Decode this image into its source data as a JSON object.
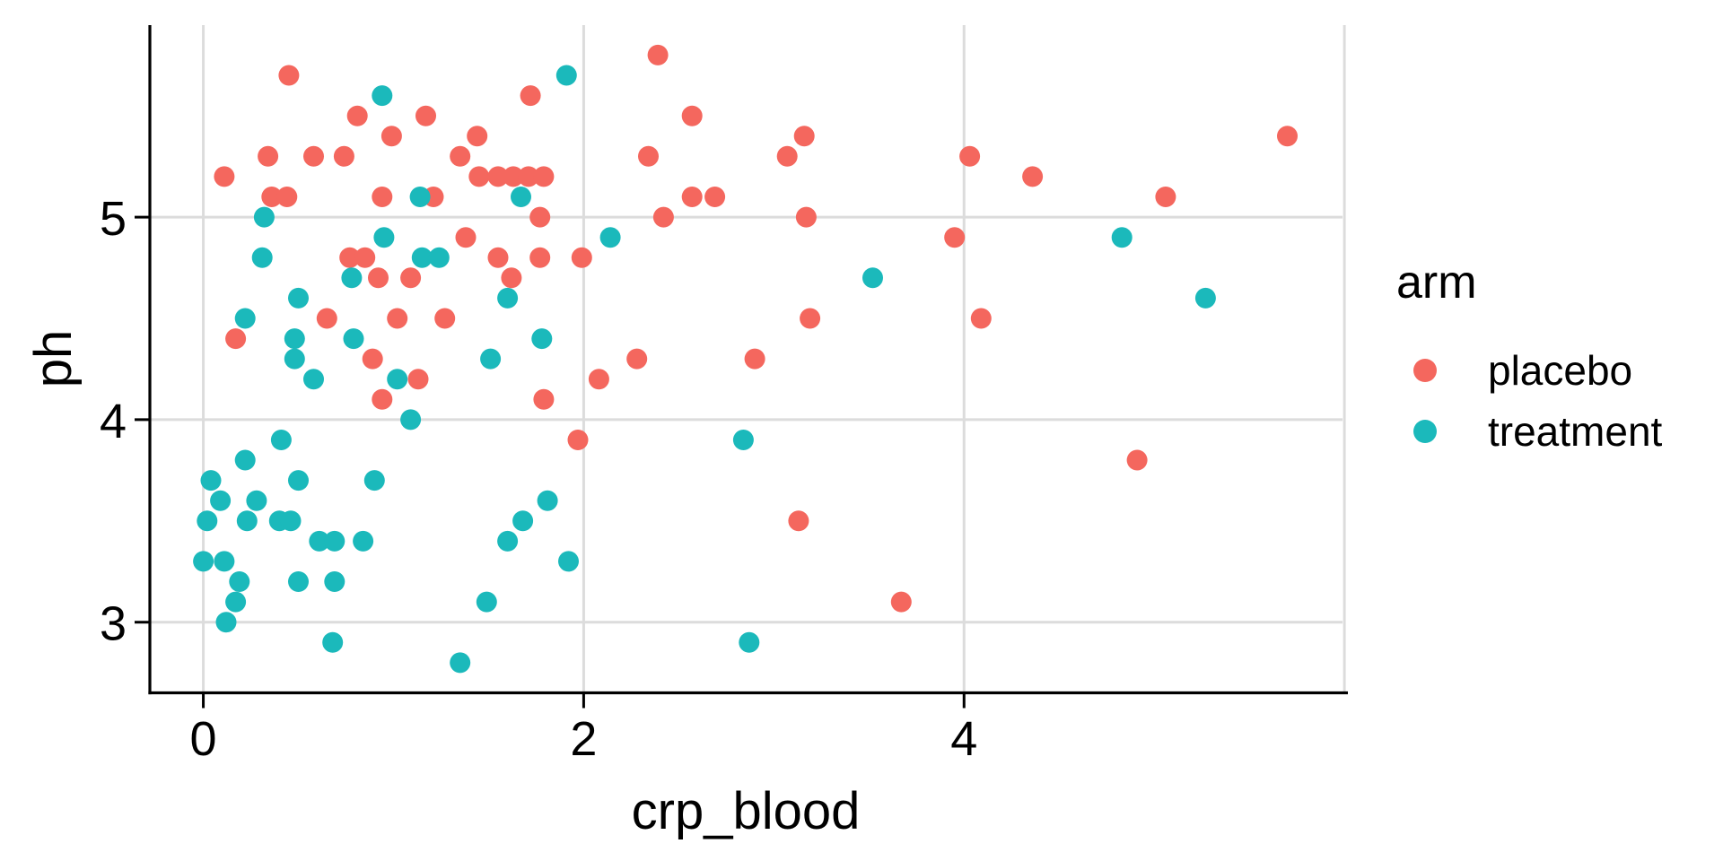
{
  "figure": {
    "background": "#ffffff",
    "text_color": "#000000",
    "gridline_color": "#dcdcdc",
    "axis_line_color": "#000000"
  },
  "chart_data": {
    "type": "scatter",
    "title": "",
    "xlabel": "crp_blood",
    "ylabel": "ph",
    "x_ticks": [
      0,
      2,
      4
    ],
    "y_ticks": [
      5,
      4,
      3
    ],
    "x_range": [
      -0.281,
      5.99
    ],
    "y_range": [
      2.651,
      5.948
    ],
    "grid": "major-only",
    "legend": {
      "title": "arm",
      "position": "right"
    },
    "series": [
      {
        "name": "placebo",
        "color": "#f4675e",
        "points": [
          [
            0.45,
            5.7
          ],
          [
            0.81,
            5.5
          ],
          [
            1.17,
            5.5
          ],
          [
            0.99,
            5.4
          ],
          [
            1.44,
            5.4
          ],
          [
            0.34,
            5.3
          ],
          [
            0.58,
            5.3
          ],
          [
            0.74,
            5.3
          ],
          [
            1.35,
            5.3
          ],
          [
            0.11,
            5.2
          ],
          [
            1.45,
            5.2
          ],
          [
            1.55,
            5.2
          ],
          [
            1.63,
            5.2
          ],
          [
            1.71,
            5.2
          ],
          [
            1.79,
            5.2
          ],
          [
            0.36,
            5.1
          ],
          [
            0.44,
            5.1
          ],
          [
            0.94,
            5.1
          ],
          [
            1.21,
            5.1
          ],
          [
            2.57,
            5.1
          ],
          [
            2.69,
            5.1
          ],
          [
            1.77,
            5.0
          ],
          [
            2.42,
            5.0
          ],
          [
            3.17,
            5.0
          ],
          [
            1.38,
            4.9
          ],
          [
            3.95,
            4.9
          ],
          [
            0.77,
            4.8
          ],
          [
            0.85,
            4.8
          ],
          [
            1.55,
            4.8
          ],
          [
            1.77,
            4.8
          ],
          [
            1.99,
            4.8
          ],
          [
            0.92,
            4.7
          ],
          [
            1.09,
            4.7
          ],
          [
            1.62,
            4.7
          ],
          [
            0.65,
            4.5
          ],
          [
            1.02,
            4.5
          ],
          [
            1.27,
            4.5
          ],
          [
            3.19,
            4.5
          ],
          [
            4.09,
            4.5
          ],
          [
            0.17,
            4.4
          ],
          [
            0.89,
            4.3
          ],
          [
            2.28,
            4.3
          ],
          [
            2.9,
            4.3
          ],
          [
            1.13,
            4.2
          ],
          [
            2.08,
            4.2
          ],
          [
            0.94,
            4.1
          ],
          [
            1.79,
            4.1
          ],
          [
            1.97,
            3.9
          ],
          [
            4.91,
            3.8
          ],
          [
            3.13,
            3.5
          ],
          [
            3.67,
            3.1
          ],
          [
            2.39,
            5.8
          ],
          [
            1.72,
            5.6
          ],
          [
            2.57,
            5.5
          ],
          [
            2.34,
            5.3
          ],
          [
            3.07,
            5.3
          ],
          [
            3.16,
            5.4
          ],
          [
            4.03,
            5.3
          ],
          [
            4.36,
            5.2
          ],
          [
            5.7,
            5.4
          ],
          [
            5.06,
            5.1
          ]
        ]
      },
      {
        "name": "treatment",
        "color": "#1bb9bb",
        "points": [
          [
            0.94,
            5.6
          ],
          [
            1.91,
            5.7
          ],
          [
            1.14,
            5.1
          ],
          [
            1.67,
            5.1
          ],
          [
            0.32,
            5.0
          ],
          [
            0.95,
            4.9
          ],
          [
            2.14,
            4.9
          ],
          [
            4.83,
            4.9
          ],
          [
            0.31,
            4.8
          ],
          [
            1.15,
            4.8
          ],
          [
            1.24,
            4.8
          ],
          [
            0.78,
            4.7
          ],
          [
            3.52,
            4.7
          ],
          [
            0.5,
            4.6
          ],
          [
            1.6,
            4.6
          ],
          [
            5.27,
            4.6
          ],
          [
            0.22,
            4.5
          ],
          [
            0.48,
            4.4
          ],
          [
            0.79,
            4.4
          ],
          [
            1.78,
            4.4
          ],
          [
            0.48,
            4.3
          ],
          [
            1.51,
            4.3
          ],
          [
            0.58,
            4.2
          ],
          [
            1.02,
            4.2
          ],
          [
            1.09,
            4.0
          ],
          [
            0.41,
            3.9
          ],
          [
            2.84,
            3.9
          ],
          [
            0.22,
            3.8
          ],
          [
            0.04,
            3.7
          ],
          [
            0.5,
            3.7
          ],
          [
            0.9,
            3.7
          ],
          [
            0.09,
            3.6
          ],
          [
            0.28,
            3.6
          ],
          [
            1.81,
            3.6
          ],
          [
            0.02,
            3.5
          ],
          [
            0.23,
            3.5
          ],
          [
            0.4,
            3.5
          ],
          [
            0.46,
            3.5
          ],
          [
            1.68,
            3.5
          ],
          [
            0.61,
            3.4
          ],
          [
            0.69,
            3.4
          ],
          [
            0.84,
            3.4
          ],
          [
            1.6,
            3.4
          ],
          [
            0.0,
            3.3
          ],
          [
            0.11,
            3.3
          ],
          [
            1.92,
            3.3
          ],
          [
            0.19,
            3.2
          ],
          [
            0.5,
            3.2
          ],
          [
            0.69,
            3.2
          ],
          [
            0.17,
            3.1
          ],
          [
            1.49,
            3.1
          ],
          [
            0.12,
            3.0
          ],
          [
            0.68,
            2.9
          ],
          [
            2.87,
            2.9
          ],
          [
            1.35,
            2.8
          ]
        ]
      }
    ]
  }
}
